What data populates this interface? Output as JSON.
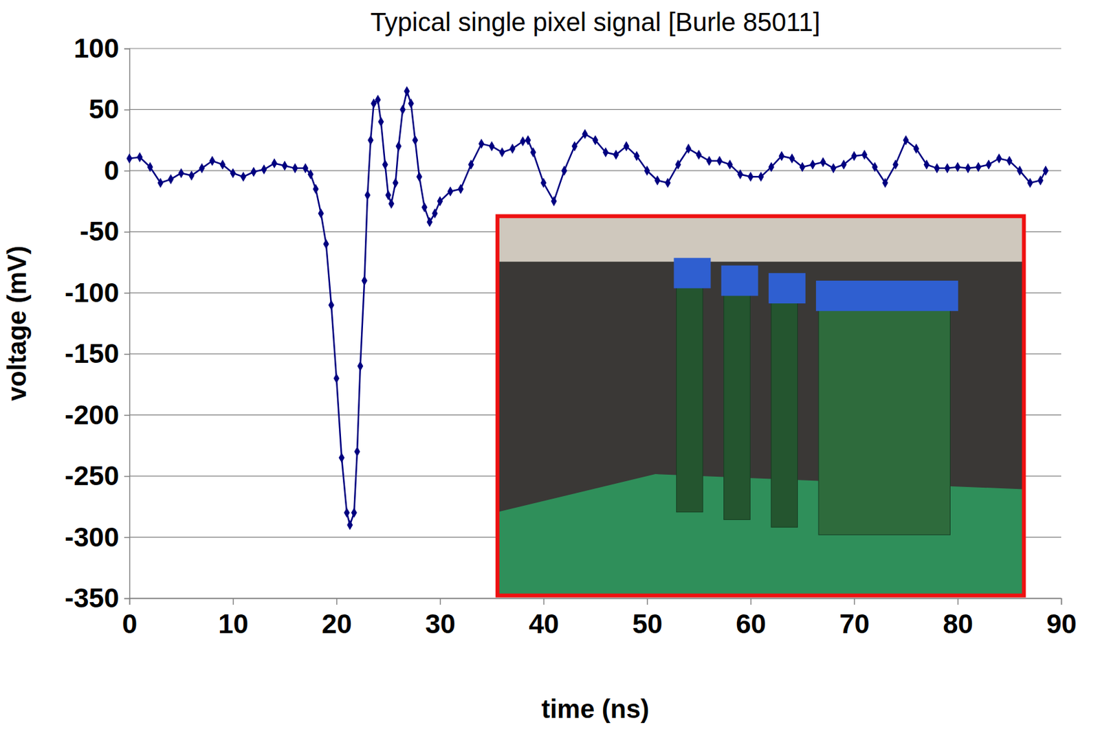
{
  "chart_data": {
    "type": "line",
    "title": "Typical single pixel signal [Burle 85011]",
    "x_label": "time (ns)",
    "y_label": "voltage (mV)",
    "x": [
      0,
      1,
      2,
      3,
      4,
      5,
      6,
      7,
      8,
      9,
      10,
      11,
      12,
      13,
      14,
      15,
      16,
      17,
      17.5,
      18,
      18.5,
      19,
      19.5,
      20,
      20.5,
      21,
      21.3,
      21.7,
      22,
      22.3,
      22.7,
      23,
      23.3,
      23.6,
      24,
      24.3,
      24.7,
      25,
      25.3,
      25.7,
      26,
      26.4,
      26.8,
      27.2,
      27.6,
      28,
      28.5,
      29,
      29.5,
      30,
      31,
      32,
      33,
      34,
      35,
      36,
      37,
      38,
      38.5,
      39,
      40,
      41,
      42,
      43,
      44,
      45,
      46,
      47,
      48,
      49,
      50,
      51,
      52,
      53,
      54,
      55,
      56,
      57,
      58,
      59,
      60,
      61,
      62,
      63,
      64,
      65,
      66,
      67,
      68,
      69,
      70,
      71,
      72,
      73,
      74,
      75,
      76,
      77,
      78,
      79,
      80,
      81,
      82,
      83,
      84,
      85,
      86,
      87,
      88,
      88.5
    ],
    "values": [
      10,
      11,
      3,
      -10,
      -7,
      -2,
      -4,
      2,
      8,
      5,
      -2,
      -5,
      -1,
      1,
      6,
      4,
      2,
      2,
      -3,
      -15,
      -35,
      -60,
      -110,
      -170,
      -235,
      -280,
      -290,
      -280,
      -230,
      -160,
      -90,
      -20,
      25,
      55,
      58,
      40,
      5,
      -20,
      -27,
      -10,
      20,
      50,
      65,
      55,
      25,
      -5,
      -30,
      -42,
      -35,
      -25,
      -17,
      -15,
      5,
      22,
      20,
      15,
      18,
      24,
      25,
      15,
      -10,
      -25,
      0,
      20,
      30,
      25,
      15,
      13,
      20,
      12,
      0,
      -8,
      -10,
      5,
      18,
      13,
      8,
      8,
      5,
      -3,
      -5,
      -5,
      3,
      12,
      10,
      3,
      5,
      7,
      2,
      5,
      12,
      13,
      3,
      -10,
      5,
      25,
      18,
      5,
      2,
      2,
      3,
      2,
      3,
      5,
      10,
      8,
      0,
      -10,
      -8,
      0
    ],
    "color": "#000080",
    "marker": "diamond",
    "line_style": "solid",
    "xlim": [
      0,
      90
    ],
    "xticks": [
      0,
      10,
      20,
      30,
      40,
      50,
      60,
      70,
      80,
      90
    ],
    "ylim": [
      -350,
      100
    ],
    "yticks": [
      -350,
      -300,
      -250,
      -200,
      -150,
      -100,
      -50,
      0,
      50,
      100
    ],
    "grid": true
  }
}
